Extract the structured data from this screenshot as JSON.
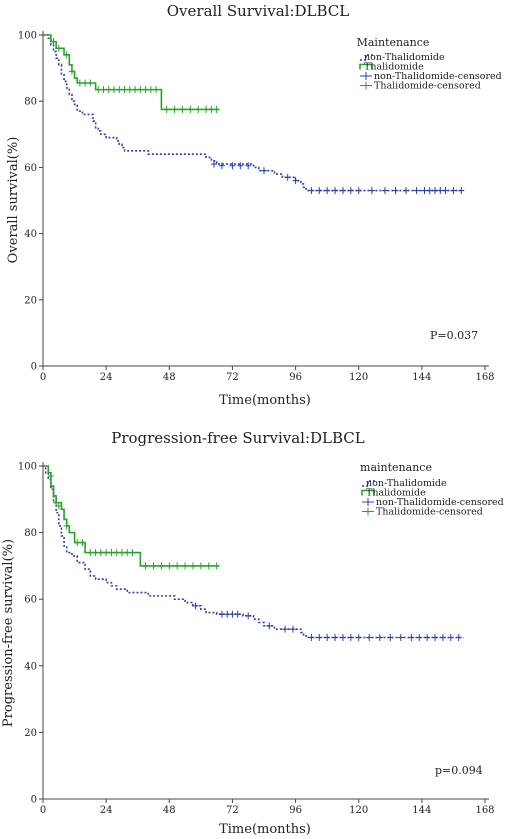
{
  "chart_data": [
    {
      "type": "line",
      "title": "Overall Survival:DLBCL",
      "xlabel": "Time(months)",
      "ylabel": "Overall survival(%)",
      "xlim": [
        0,
        168
      ],
      "ylim": [
        0,
        100
      ],
      "xticks": [
        0,
        24,
        48,
        72,
        96,
        120,
        144,
        168
      ],
      "yticks": [
        0,
        20,
        40,
        60,
        80,
        100
      ],
      "legend": {
        "title": "Maintenance",
        "placement": "top-right",
        "entries": [
          {
            "label": "non-Thalidomide",
            "color": "#2c3fa6",
            "style": "dotted-step"
          },
          {
            "label": "Thalidomide",
            "color": "#2aa02a",
            "style": "solid-step"
          },
          {
            "label": "non-Thalidomide-censored",
            "color": "#2c3fa6",
            "style": "censor"
          },
          {
            "label": "Thalidomide-censored",
            "color": "#2aa02a",
            "style": "censor"
          }
        ]
      },
      "annotation": "P=0.037",
      "series": [
        {
          "name": "non-Thalidomide",
          "color": "#2c3fa6",
          "dash": "2,2",
          "steps": [
            [
              0,
              100
            ],
            [
              2,
              99
            ],
            [
              3,
              97
            ],
            [
              4,
              95
            ],
            [
              5,
              93
            ],
            [
              6,
              91
            ],
            [
              7,
              88
            ],
            [
              8,
              86
            ],
            [
              9,
              84
            ],
            [
              10,
              82
            ],
            [
              11,
              80
            ],
            [
              12,
              79
            ],
            [
              13,
              77
            ],
            [
              15,
              76
            ],
            [
              19,
              74
            ],
            [
              20,
              72
            ],
            [
              21,
              71
            ],
            [
              22,
              70
            ],
            [
              24,
              69
            ],
            [
              28,
              68
            ],
            [
              29,
              67
            ],
            [
              30,
              66
            ],
            [
              31,
              65
            ],
            [
              40,
              64
            ],
            [
              62,
              63
            ],
            [
              64,
              62
            ],
            [
              66,
              61
            ],
            [
              80,
              60
            ],
            [
              82,
              59
            ],
            [
              88,
              58
            ],
            [
              91,
              57
            ],
            [
              96,
              56
            ],
            [
              98,
              55
            ],
            [
              99,
              54
            ],
            [
              100,
              53
            ],
            [
              160,
              53
            ]
          ],
          "censored": [
            [
              65,
              61
            ],
            [
              68,
              60.5
            ],
            [
              72,
              60.5
            ],
            [
              75,
              60.5
            ],
            [
              78,
              60.5
            ],
            [
              84,
              59
            ],
            [
              93,
              57
            ],
            [
              96,
              56
            ],
            [
              102,
              53
            ],
            [
              105,
              53
            ],
            [
              108,
              53
            ],
            [
              111,
              53
            ],
            [
              114,
              53
            ],
            [
              117,
              53
            ],
            [
              120,
              53
            ],
            [
              125,
              53
            ],
            [
              130,
              53
            ],
            [
              134,
              53
            ],
            [
              138,
              53
            ],
            [
              142,
              53
            ],
            [
              145,
              53
            ],
            [
              147,
              53
            ],
            [
              149,
              53
            ],
            [
              151,
              53
            ],
            [
              153,
              53
            ],
            [
              156,
              53
            ],
            [
              159,
              53
            ]
          ]
        },
        {
          "name": "Thalidomide",
          "color": "#2aa02a",
          "dash": "",
          "steps": [
            [
              0,
              100
            ],
            [
              3,
              98
            ],
            [
              5,
              96
            ],
            [
              8,
              94
            ],
            [
              10,
              91
            ],
            [
              11,
              89
            ],
            [
              12,
              87
            ],
            [
              13,
              85.5
            ],
            [
              20,
              83.5
            ],
            [
              44,
              83.5
            ],
            [
              45,
              77.5
            ],
            [
              67,
              77.5
            ]
          ],
          "censored": [
            [
              4,
              98
            ],
            [
              6,
              96
            ],
            [
              9,
              94
            ],
            [
              11,
              89
            ],
            [
              14,
              85.5
            ],
            [
              16,
              85.5
            ],
            [
              18,
              85.5
            ],
            [
              21,
              83.5
            ],
            [
              23,
              83.5
            ],
            [
              25,
              83.5
            ],
            [
              27,
              83.5
            ],
            [
              29,
              83.5
            ],
            [
              31,
              83.5
            ],
            [
              33,
              83.5
            ],
            [
              35,
              83.5
            ],
            [
              37,
              83.5
            ],
            [
              39,
              83.5
            ],
            [
              41,
              83.5
            ],
            [
              43,
              83.5
            ],
            [
              47,
              77.5
            ],
            [
              50,
              77.5
            ],
            [
              53,
              77.5
            ],
            [
              56,
              77.5
            ],
            [
              59,
              77.5
            ],
            [
              62,
              77.5
            ],
            [
              64,
              77.5
            ],
            [
              66,
              77.5
            ]
          ]
        }
      ]
    },
    {
      "type": "line",
      "title": "Progression-free Survival:DLBCL",
      "xlabel": "Time(months)",
      "ylabel": "Progression-free survival(%)",
      "xlim": [
        0,
        168
      ],
      "ylim": [
        0,
        100
      ],
      "xticks": [
        0,
        24,
        48,
        72,
        96,
        120,
        144,
        168
      ],
      "yticks": [
        0,
        20,
        40,
        60,
        80,
        100
      ],
      "legend": {
        "title": "maintenance",
        "placement": "top-right",
        "entries": [
          {
            "label": "non-Thalidomide",
            "color": "#2c3fa6",
            "style": "dotted-step"
          },
          {
            "label": "Thalidomide",
            "color": "#2aa02a",
            "style": "solid-step"
          },
          {
            "label": "non-Thalidomide-censored",
            "color": "#2c3fa6",
            "style": "censor"
          },
          {
            "label": "Thalidomide-censored",
            "color": "#2aa02a",
            "style": "censor"
          }
        ]
      },
      "annotation": "p=0.094",
      "series": [
        {
          "name": "non-Thalidomide",
          "color": "#2c3fa6",
          "dash": "2,2",
          "steps": [
            [
              0,
              100
            ],
            [
              1,
              98
            ],
            [
              2,
              96
            ],
            [
              3,
              93
            ],
            [
              4,
              89
            ],
            [
              5,
              86
            ],
            [
              6,
              82
            ],
            [
              7,
              79
            ],
            [
              8,
              76
            ],
            [
              9,
              74
            ],
            [
              11,
              73
            ],
            [
              13,
              71
            ],
            [
              16,
              69
            ],
            [
              18,
              67
            ],
            [
              20,
              66
            ],
            [
              24,
              65
            ],
            [
              26,
              64
            ],
            [
              28,
              63
            ],
            [
              32,
              62
            ],
            [
              40,
              61
            ],
            [
              50,
              60
            ],
            [
              54,
              59
            ],
            [
              57,
              58
            ],
            [
              60,
              57
            ],
            [
              62,
              56
            ],
            [
              66,
              55.5
            ],
            [
              76,
              55
            ],
            [
              80,
              54
            ],
            [
              82,
              53
            ],
            [
              84,
              52
            ],
            [
              88,
              51
            ],
            [
              98,
              50
            ],
            [
              99,
              49
            ],
            [
              100,
              48.5
            ],
            [
              160,
              48.5
            ]
          ],
          "censored": [
            [
              58,
              58
            ],
            [
              68,
              55.5
            ],
            [
              70,
              55.5
            ],
            [
              72,
              55.5
            ],
            [
              74,
              55.5
            ],
            [
              78,
              55
            ],
            [
              86,
              52
            ],
            [
              92,
              51
            ],
            [
              95,
              51
            ],
            [
              102,
              48.5
            ],
            [
              105,
              48.5
            ],
            [
              108,
              48.5
            ],
            [
              111,
              48.5
            ],
            [
              114,
              48.5
            ],
            [
              117,
              48.5
            ],
            [
              120,
              48.5
            ],
            [
              124,
              48.5
            ],
            [
              128,
              48.5
            ],
            [
              132,
              48.5
            ],
            [
              136,
              48.5
            ],
            [
              140,
              48.5
            ],
            [
              143,
              48.5
            ],
            [
              146,
              48.5
            ],
            [
              149,
              48.5
            ],
            [
              152,
              48.5
            ],
            [
              155,
              48.5
            ],
            [
              158,
              48.5
            ]
          ]
        },
        {
          "name": "Thalidomide",
          "color": "#2aa02a",
          "dash": "",
          "steps": [
            [
              0,
              100
            ],
            [
              2,
              98
            ],
            [
              3,
              94
            ],
            [
              4,
              91
            ],
            [
              5,
              89
            ],
            [
              7,
              87
            ],
            [
              8,
              84
            ],
            [
              9,
              82
            ],
            [
              10,
              80
            ],
            [
              12,
              77
            ],
            [
              16,
              74
            ],
            [
              36,
              74
            ],
            [
              37,
              70
            ],
            [
              67,
              70
            ]
          ],
          "censored": [
            [
              3,
              97
            ],
            [
              5,
              89
            ],
            [
              6,
              88
            ],
            [
              9,
              82
            ],
            [
              13,
              77
            ],
            [
              15,
              77
            ],
            [
              18,
              74
            ],
            [
              20,
              74
            ],
            [
              22,
              74
            ],
            [
              24,
              74
            ],
            [
              26,
              74
            ],
            [
              28,
              74
            ],
            [
              30,
              74
            ],
            [
              32,
              74
            ],
            [
              34,
              74
            ],
            [
              39,
              70
            ],
            [
              42,
              70
            ],
            [
              45,
              70
            ],
            [
              48,
              70
            ],
            [
              51,
              70
            ],
            [
              54,
              70
            ],
            [
              57,
              70
            ],
            [
              60,
              70
            ],
            [
              63,
              70
            ],
            [
              66,
              70
            ]
          ]
        }
      ]
    }
  ]
}
